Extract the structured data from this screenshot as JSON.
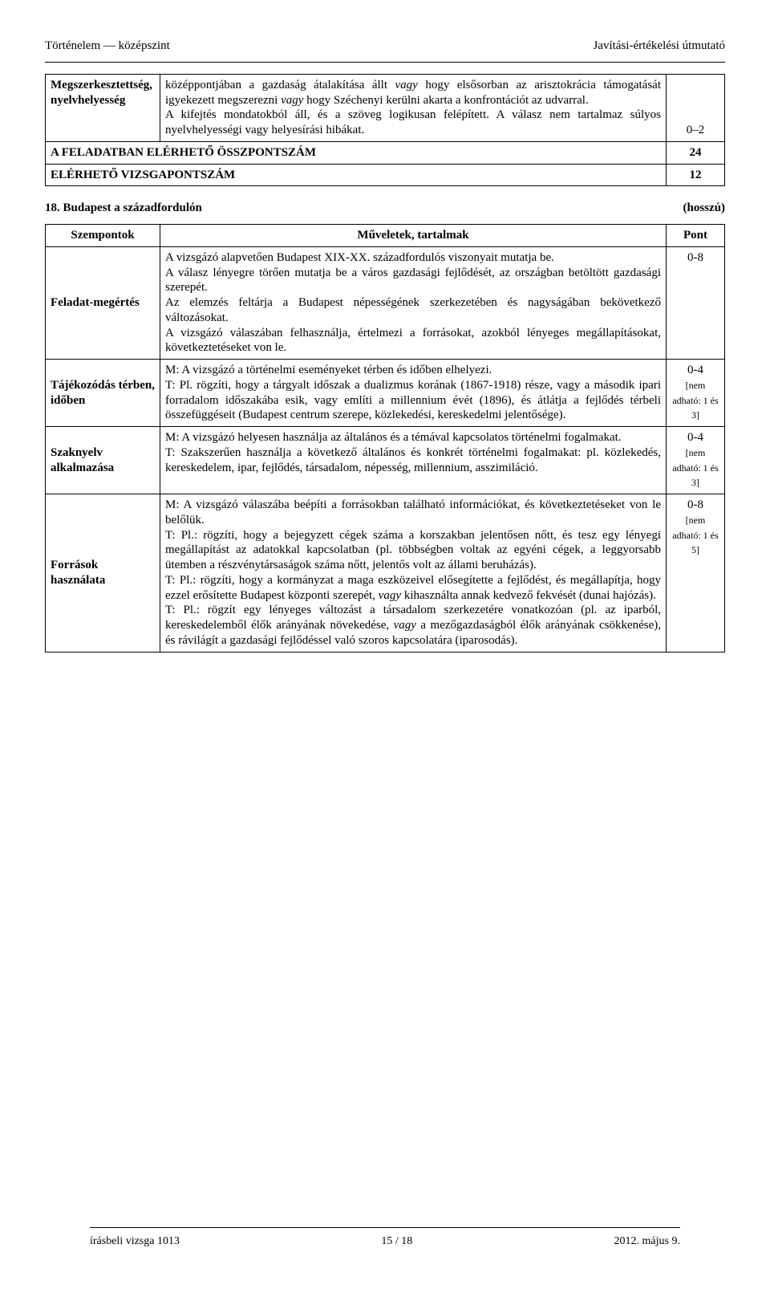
{
  "header": {
    "left": "Történelem — középszint",
    "right": "Javítási-értékelési útmutató"
  },
  "table1": {
    "row1": {
      "label": "Megszerkesztettség, nyelvhelyesség",
      "content_part1": "középpontjában a gazdaság átalakítása állt ",
      "content_italic1": "vagy",
      "content_part2": " hogy elsősorban az arisztokrácia támogatását igyekezett megszerezni ",
      "content_italic2": "vagy",
      "content_part3": " hogy Széchenyi kerülni akarta a konfrontációt az udvarral.",
      "content_line2": "A kifejtés mondatokból áll, és a szöveg logikusan felépített. A válasz nem tartalmaz súlyos nyelvhelyességi vagy helyesírási hibákat.",
      "points": "0–2"
    },
    "row2": {
      "label": "A FELADATBAN ELÉRHETŐ ÖSSZPONTSZÁM",
      "points": "24"
    },
    "row3": {
      "label": "ELÉRHETŐ VIZSGAPONTSZÁM",
      "points": "12"
    }
  },
  "section": {
    "number_title": "18. Budapest a századfordulón",
    "mode": "(hosszú)"
  },
  "table2": {
    "header": {
      "c1": "Szempontok",
      "c2": "Műveletek, tartalmak",
      "c3": "Pont"
    },
    "row1": {
      "label": "Feladat-megértés",
      "text": "A vizsgázó alapvetően Budapest XIX-XX. századfordulós viszonyait mutatja be.\nA válasz lényegre törően mutatja be a város gazdasági fejlődését, az országban betöltött gazdasági szerepét.\nAz elemzés feltárja a Budapest népességének szerkezetében és nagyságában bekövetkező változásokat.\nA vizsgázó válaszában felhasználja, értelmezi a forrásokat, azokból lényeges megállapításokat, következtetéseket von le.",
      "points": "0-8"
    },
    "row2": {
      "label": "Tájékozódás térben, időben",
      "text": "M: A vizsgázó a történelmi eseményeket térben és időben elhelyezi.\nT: Pl. rögzíti, hogy a tárgyalt időszak a dualizmus korának (1867-1918) része, vagy a második ipari forradalom időszakába esik, vagy említi a millennium évét (1896), és átlátja a fejlődés térbeli összefüggéseit (Budapest centrum szerepe, közlekedési, kereskedelmi jelentősége).",
      "points": "0-4",
      "points_note": "[nem adható: 1 és 3]"
    },
    "row3": {
      "label": "Szaknyelv alkalmazása",
      "text": "M: A vizsgázó helyesen használja az általános és a témával kapcsolatos történelmi fogalmakat.\nT: Szakszerűen használja a következő általános és konkrét történelmi fogalmakat: pl. közlekedés, kereskedelem, ipar, fejlődés, társadalom, népesség, millennium, asszimiláció.",
      "points": "0-4",
      "points_note": "[nem adható: 1 és 3]"
    },
    "row4": {
      "label": "Források használata",
      "t_pre": "M: A vizsgázó válaszába beépíti a forrásokban található információkat, és következtetéseket von le belőlük.\nT: Pl.: rögzíti, hogy a bejegyzett cégek száma a korszakban jelentősen nőtt, és tesz egy lényegi megállapítást az adatokkal kapcsolatban (pl. többségben voltak az egyéni cégek, a leggyorsabb ütemben a részvénytársaságok száma nőtt, jelentős volt az állami beruházás).\nT: Pl.: rögzíti, hogy a kormányzat a maga eszközeivel elősegítette a fejlődést, és megállapítja, hogy ezzel erősítette Budapest központi szerepét, ",
      "t_italic1": "vagy",
      "t_mid": " kihasználta annak kedvező fekvését (dunai hajózás).\nT: Pl.: rögzít egy lényeges változást a társadalom szerkezetére vonatkozóan (pl. az iparból, kereskedelemből élők arányának növekedése, ",
      "t_italic2": "vagy",
      "t_post": " a mezőgazdaságból élők arányának csökkenése), és rávilágít a gazdasági fejlődéssel való szoros kapcsolatára (iparosodás).",
      "points": "0-8",
      "points_note": "[nem adható: 1 és 5]"
    }
  },
  "footer": {
    "left": "írásbeli vizsga 1013",
    "center": "15 / 18",
    "right": "2012. május 9."
  }
}
